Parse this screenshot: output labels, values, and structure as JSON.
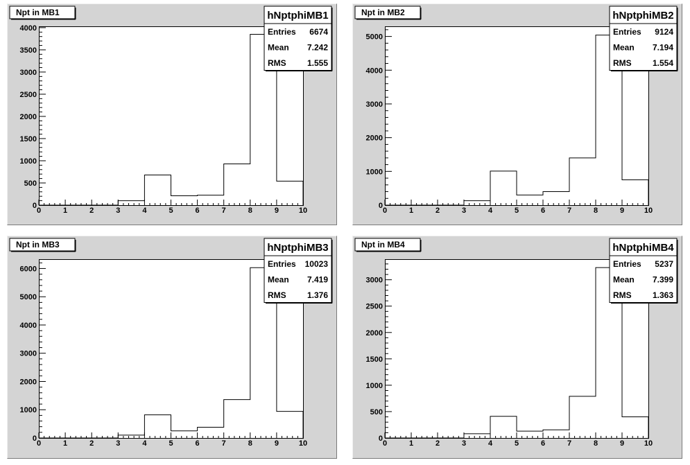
{
  "chart_data": [
    {
      "type": "bar",
      "title": "Npt in MB1",
      "histogram_name": "hNptphiMB1",
      "bin_edges": [
        0,
        1,
        2,
        3,
        4,
        5,
        6,
        7,
        8,
        9,
        10
      ],
      "values": [
        0,
        0,
        0,
        100,
        680,
        210,
        225,
        930,
        3850,
        540
      ],
      "xlim": [
        0,
        10
      ],
      "ylim": [
        0,
        4030
      ],
      "x_ticks": [
        0,
        1,
        2,
        3,
        4,
        5,
        6,
        7,
        8,
        9,
        10
      ],
      "y_ticks": [
        0,
        500,
        1000,
        1500,
        2000,
        2500,
        3000,
        3500,
        4000
      ],
      "stats": [
        {
          "label": "Entries",
          "value": "6674"
        },
        {
          "label": "Mean",
          "value": "7.242"
        },
        {
          "label": "RMS",
          "value": "1.555"
        }
      ]
    },
    {
      "type": "bar",
      "title": "Npt in MB2",
      "histogram_name": "hNptphiMB2",
      "bin_edges": [
        0,
        1,
        2,
        3,
        4,
        5,
        6,
        7,
        8,
        9,
        10
      ],
      "values": [
        0,
        0,
        0,
        130,
        1010,
        300,
        400,
        1400,
        5040,
        750
      ],
      "xlim": [
        0,
        10
      ],
      "ylim": [
        0,
        5300
      ],
      "x_ticks": [
        0,
        1,
        2,
        3,
        4,
        5,
        6,
        7,
        8,
        9,
        10
      ],
      "y_ticks": [
        0,
        1000,
        2000,
        3000,
        4000,
        5000
      ],
      "stats": [
        {
          "label": "Entries",
          "value": "9124"
        },
        {
          "label": "Mean",
          "value": "7.194"
        },
        {
          "label": "RMS",
          "value": "1.554"
        }
      ]
    },
    {
      "type": "bar",
      "title": "Npt in MB3",
      "histogram_name": "hNptphiMB3",
      "bin_edges": [
        0,
        1,
        2,
        3,
        4,
        5,
        6,
        7,
        8,
        9,
        10
      ],
      "values": [
        0,
        0,
        0,
        100,
        820,
        250,
        380,
        1360,
        6030,
        940
      ],
      "xlim": [
        0,
        10
      ],
      "ylim": [
        0,
        6330
      ],
      "x_ticks": [
        0,
        1,
        2,
        3,
        4,
        5,
        6,
        7,
        8,
        9,
        10
      ],
      "y_ticks": [
        0,
        1000,
        2000,
        3000,
        4000,
        5000,
        6000
      ],
      "stats": [
        {
          "label": "Entries",
          "value": "10023"
        },
        {
          "label": "Mean",
          "value": "7.419"
        },
        {
          "label": "RMS",
          "value": "1.376"
        }
      ]
    },
    {
      "type": "bar",
      "title": "Npt in MB4",
      "histogram_name": "hNptphiMB4",
      "bin_edges": [
        0,
        1,
        2,
        3,
        4,
        5,
        6,
        7,
        8,
        9,
        10
      ],
      "values": [
        0,
        0,
        0,
        80,
        410,
        130,
        155,
        790,
        3230,
        400
      ],
      "xlim": [
        0,
        10
      ],
      "ylim": [
        0,
        3390
      ],
      "x_ticks": [
        0,
        1,
        2,
        3,
        4,
        5,
        6,
        7,
        8,
        9,
        10
      ],
      "y_ticks": [
        0,
        500,
        1000,
        1500,
        2000,
        2500,
        3000
      ],
      "stats": [
        {
          "label": "Entries",
          "value": "5237"
        },
        {
          "label": "Mean",
          "value": "7.399"
        },
        {
          "label": "RMS",
          "value": "1.363"
        }
      ]
    }
  ]
}
